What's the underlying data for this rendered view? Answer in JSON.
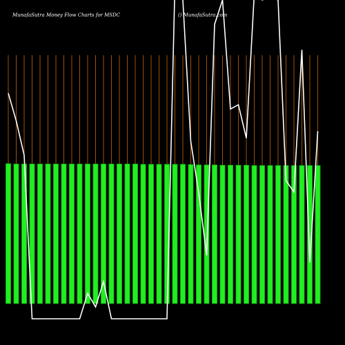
{
  "chart_data": {
    "type": "bar",
    "title": "MunafaSutra  Money Flow  Charts for MSDC",
    "subtitle": "() MunafaSutra.com",
    "categories": [
      null,
      null,
      null,
      null,
      null,
      null,
      null,
      null,
      null,
      null,
      null,
      null,
      null,
      null,
      null,
      null,
      null,
      null,
      null,
      null,
      null,
      null,
      null,
      null,
      null,
      null,
      null,
      null,
      null,
      null,
      null,
      null,
      null,
      null,
      null,
      null,
      null,
      null,
      null,
      null
    ],
    "series": [
      {
        "color": "#22ee22",
        "values": [
          46.1,
          46.0,
          46.0,
          46.0,
          46.0,
          46.0,
          46.0,
          46.0,
          46.0,
          46.0,
          46.0,
          46.0,
          46.0,
          46.0,
          46.0,
          46.0,
          46.0,
          45.9,
          45.9,
          45.9,
          45.9,
          45.9,
          45.9,
          45.8,
          45.7,
          45.7,
          45.7,
          45.6,
          45.6,
          45.6,
          45.6,
          45.5,
          45.5,
          45.5,
          45.5,
          45.5,
          45.5,
          45.5,
          45.5,
          45.5
        ]
      },
      {
        "type": "line",
        "color": "#ffffff",
        "values": [
          69.3,
          60.2,
          48.9,
          -5,
          -5,
          -5,
          -5,
          -5,
          -5,
          -5,
          3.4,
          -1.1,
          7.3,
          -5,
          -5,
          -5,
          -5,
          -5,
          -5,
          -5,
          -5,
          105,
          100,
          53.4,
          36.4,
          15.9,
          92,
          100,
          64.1,
          65.5,
          54.5,
          102,
          100,
          101,
          100,
          40.5,
          36.8,
          83.6,
          13.6,
          56.8
        ]
      }
    ],
    "ylim": [
      0,
      100
    ],
    "grid": true,
    "grid_color": "#a0520a"
  }
}
